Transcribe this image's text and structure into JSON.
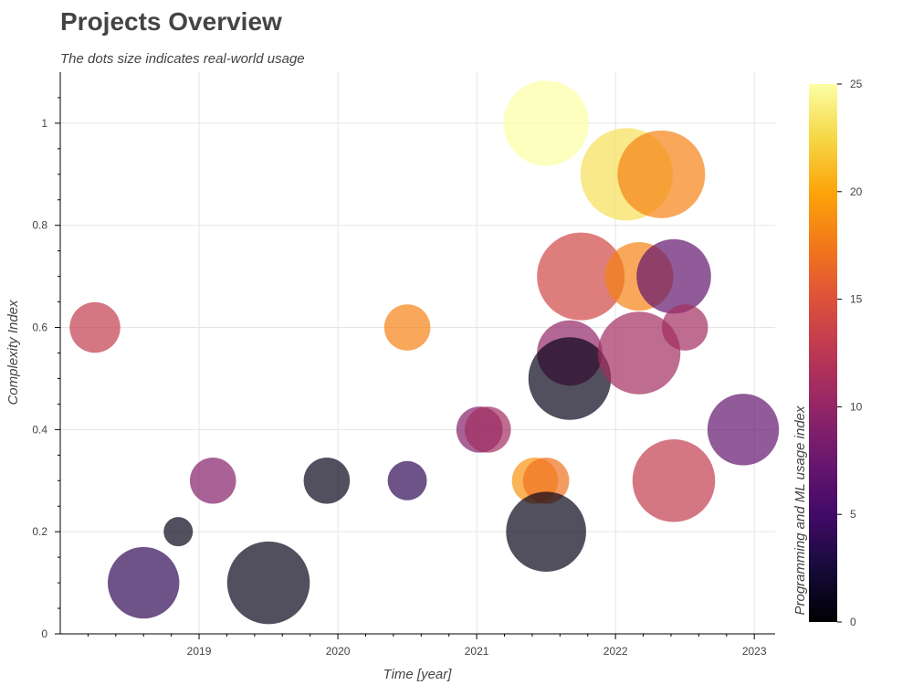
{
  "chart_data": {
    "type": "scatter",
    "title": "Projects Overview",
    "subtitle": "The dots size indicates real-world usage",
    "xlabel": "Time [year]",
    "ylabel": "Complexity Index",
    "xlim": [
      2018.0,
      2023.15
    ],
    "ylim": [
      0,
      1.1
    ],
    "x_ticks": [
      2019,
      2020,
      2021,
      2022,
      2023
    ],
    "y_ticks": [
      0,
      0.2,
      0.4,
      0.6,
      0.8,
      1
    ],
    "grid": true,
    "colorbar": {
      "label": "Programming and ML usage index",
      "colormap": "inferno",
      "range": [
        0,
        25
      ],
      "ticks": [
        0,
        5,
        10,
        15,
        20,
        25
      ]
    },
    "points": [
      {
        "x": 2018.25,
        "y": 0.6,
        "size": 3,
        "color_value": 13
      },
      {
        "x": 2018.6,
        "y": 0.1,
        "size": 6,
        "color_value": 4
      },
      {
        "x": 2018.85,
        "y": 0.2,
        "size": 1,
        "color_value": 1
      },
      {
        "x": 2019.1,
        "y": 0.3,
        "size": 2.5,
        "color_value": 9
      },
      {
        "x": 2019.5,
        "y": 0.1,
        "size": 8,
        "color_value": 1
      },
      {
        "x": 2019.92,
        "y": 0.3,
        "size": 2.5,
        "color_value": 1
      },
      {
        "x": 2020.5,
        "y": 0.6,
        "size": 2.5,
        "color_value": 18
      },
      {
        "x": 2020.5,
        "y": 0.3,
        "size": 1.8,
        "color_value": 4
      },
      {
        "x": 2021.02,
        "y": 0.4,
        "size": 2.5,
        "color_value": 9
      },
      {
        "x": 2021.08,
        "y": 0.4,
        "size": 2.5,
        "color_value": 11
      },
      {
        "x": 2021.42,
        "y": 0.3,
        "size": 2.5,
        "color_value": 19
      },
      {
        "x": 2021.5,
        "y": 0.3,
        "size": 2.5,
        "color_value": 17
      },
      {
        "x": 2021.5,
        "y": 0.2,
        "size": 7.5,
        "color_value": 1
      },
      {
        "x": 2021.5,
        "y": 1.0,
        "size": 8.5,
        "color_value": 25
      },
      {
        "x": 2021.67,
        "y": 0.55,
        "size": 5,
        "color_value": 10
      },
      {
        "x": 2021.67,
        "y": 0.5,
        "size": 8,
        "color_value": 1
      },
      {
        "x": 2021.75,
        "y": 0.7,
        "size": 9,
        "color_value": 14
      },
      {
        "x": 2022.08,
        "y": 0.9,
        "size": 10,
        "color_value": 23
      },
      {
        "x": 2022.17,
        "y": 0.55,
        "size": 8,
        "color_value": 11
      },
      {
        "x": 2022.17,
        "y": 0.7,
        "size": 5.5,
        "color_value": 18
      },
      {
        "x": 2022.33,
        "y": 0.9,
        "size": 9,
        "color_value": 18
      },
      {
        "x": 2022.42,
        "y": 0.7,
        "size": 6.5,
        "color_value": 7
      },
      {
        "x": 2022.42,
        "y": 0.3,
        "size": 8,
        "color_value": 13
      },
      {
        "x": 2022.5,
        "y": 0.6,
        "size": 2.5,
        "color_value": 11
      },
      {
        "x": 2022.92,
        "y": 0.4,
        "size": 6,
        "color_value": 7
      }
    ]
  }
}
